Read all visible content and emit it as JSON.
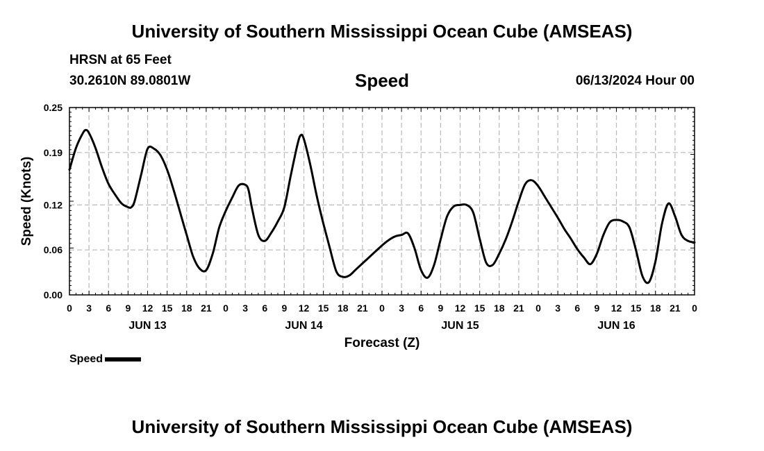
{
  "header": {
    "title": "University of Southern Mississippi Ocean Cube (AMSEAS)",
    "station": "HRSN at 65 Feet",
    "coords": "30.2610N  89.0801W",
    "date": "06/13/2024 Hour 00"
  },
  "footer": {
    "title": "University of Southern Mississippi Ocean Cube (AMSEAS)"
  },
  "legend": {
    "label": "Speed"
  },
  "chart_data": {
    "type": "line",
    "title": "Speed",
    "xlabel": "Forecast (Z)",
    "ylabel": "Speed (Knots)",
    "xlim": [
      0,
      96
    ],
    "ylim": [
      0,
      0.25
    ],
    "yticks": [
      0.0,
      0.06,
      0.12,
      0.19,
      0.25
    ],
    "ytick_labels": [
      "0.00",
      "0.06",
      "0.12",
      "0.19",
      "0.25"
    ],
    "xticks": [
      0,
      3,
      6,
      9,
      12,
      15,
      18,
      21,
      24,
      27,
      30,
      33,
      36,
      39,
      42,
      45,
      48,
      51,
      54,
      57,
      60,
      63,
      66,
      69,
      72,
      75,
      78,
      81,
      84,
      87,
      90,
      93,
      96
    ],
    "xtick_labels": [
      "0",
      "3",
      "6",
      "9",
      "12",
      "15",
      "18",
      "21",
      "0",
      "3",
      "6",
      "9",
      "12",
      "15",
      "18",
      "21",
      "0",
      "3",
      "6",
      "9",
      "12",
      "15",
      "18",
      "21",
      "0",
      "3",
      "6",
      "9",
      "12",
      "15",
      "18",
      "21",
      "0"
    ],
    "day_labels": [
      {
        "x": 12,
        "label": "JUN 13"
      },
      {
        "x": 36,
        "label": "JUN 14"
      },
      {
        "x": 60,
        "label": "JUN 15"
      },
      {
        "x": 84,
        "label": "JUN 16"
      }
    ],
    "grid": true,
    "series": [
      {
        "name": "Speed",
        "x": [
          0,
          1,
          2,
          2.5,
          3,
          4,
          5,
          6,
          7,
          8,
          9,
          9.5,
          10,
          11,
          12,
          13,
          14,
          15,
          16,
          17,
          18,
          19,
          20,
          21,
          22,
          23,
          24,
          25,
          26,
          27,
          27.5,
          28,
          29,
          30,
          31,
          32,
          33,
          34,
          35,
          35.5,
          36,
          37,
          38,
          39,
          40,
          41,
          42,
          43,
          44,
          45,
          46,
          47,
          48,
          49,
          50,
          51,
          52,
          53,
          54,
          55,
          56,
          57,
          58,
          59,
          60,
          61,
          62,
          63,
          64,
          65,
          66,
          67,
          68,
          69,
          70,
          71,
          72,
          73,
          74,
          75,
          76,
          77,
          78,
          79,
          80,
          81,
          82,
          83,
          84,
          85,
          86,
          87,
          88,
          89,
          90,
          91,
          92,
          93,
          94,
          95,
          96
        ],
        "values": [
          0.167,
          0.196,
          0.215,
          0.22,
          0.216,
          0.196,
          0.17,
          0.148,
          0.134,
          0.122,
          0.117,
          0.117,
          0.125,
          0.16,
          0.195,
          0.195,
          0.186,
          0.167,
          0.14,
          0.11,
          0.08,
          0.051,
          0.035,
          0.033,
          0.055,
          0.09,
          0.112,
          0.13,
          0.146,
          0.147,
          0.14,
          0.117,
          0.08,
          0.072,
          0.083,
          0.098,
          0.117,
          0.16,
          0.2,
          0.213,
          0.208,
          0.173,
          0.131,
          0.095,
          0.062,
          0.031,
          0.024,
          0.026,
          0.034,
          0.042,
          0.05,
          0.058,
          0.066,
          0.073,
          0.078,
          0.08,
          0.082,
          0.062,
          0.033,
          0.023,
          0.04,
          0.074,
          0.105,
          0.118,
          0.12,
          0.12,
          0.11,
          0.075,
          0.043,
          0.04,
          0.055,
          0.074,
          0.098,
          0.125,
          0.148,
          0.153,
          0.145,
          0.131,
          0.117,
          0.103,
          0.088,
          0.075,
          0.061,
          0.05,
          0.041,
          0.055,
          0.08,
          0.097,
          0.1,
          0.098,
          0.09,
          0.06,
          0.025,
          0.017,
          0.045,
          0.095,
          0.122,
          0.105,
          0.08,
          0.072,
          0.07
        ]
      }
    ]
  }
}
